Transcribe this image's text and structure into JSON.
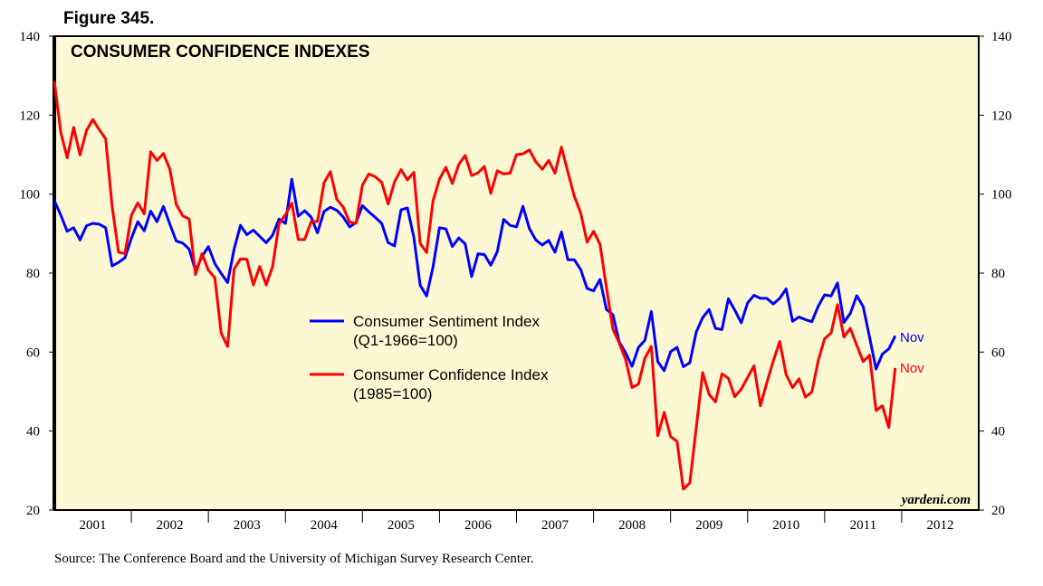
{
  "figure_label": "Figure 345.",
  "source": "Source: The Conference Board and the University of Michigan Survey Research Center.",
  "watermark": "yardeni.com",
  "chart_data": {
    "type": "line",
    "title": "CONSUMER CONFIDENCE INDEXES",
    "xlabel": "",
    "ylabel": "",
    "ylim": [
      20,
      140
    ],
    "yticks": [
      20,
      40,
      60,
      80,
      100,
      120,
      140
    ],
    "ytick_labels": [
      "20",
      "40",
      "60",
      "80",
      "100",
      "120",
      "140"
    ],
    "x_tick_labels": [
      "2001",
      "2002",
      "2003",
      "2004",
      "2005",
      "2006",
      "2007",
      "2008",
      "2009",
      "2010",
      "2011",
      "2012"
    ],
    "x_start": "2000-12",
    "x_frequency": "monthly",
    "grid": false,
    "legend_placement": "center",
    "background": "#fdf8d4",
    "series": [
      {
        "name": "Consumer Sentiment Index",
        "name_note": "(Q1-1966=100)",
        "color": "#0000ff",
        "end_label": "Nov",
        "values": [
          98.4,
          94.7,
          90.6,
          91.5,
          88.4,
          92.0,
          92.6,
          92.4,
          91.5,
          81.8,
          82.7,
          83.9,
          88.8,
          93.0,
          90.7,
          95.7,
          93.0,
          96.9,
          92.4,
          88.1,
          87.6,
          86.1,
          80.6,
          84.2,
          86.7,
          82.4,
          79.9,
          77.6,
          86.0,
          92.1,
          89.7,
          90.9,
          89.3,
          87.7,
          89.6,
          93.7,
          92.6,
          103.8,
          94.4,
          95.8,
          94.2,
          90.2,
          95.6,
          96.7,
          95.9,
          94.2,
          91.7,
          92.8,
          97.1,
          95.5,
          94.1,
          92.6,
          87.7,
          86.9,
          96.0,
          96.5,
          89.1,
          76.9,
          74.2,
          81.6,
          91.5,
          91.2,
          86.7,
          88.9,
          87.4,
          79.1,
          84.9,
          84.7,
          82.0,
          85.4,
          93.6,
          92.1,
          91.7,
          96.9,
          91.3,
          88.4,
          87.1,
          88.3,
          85.3,
          90.4,
          83.4,
          83.4,
          80.9,
          76.1,
          75.5,
          78.4,
          70.8,
          69.5,
          62.6,
          59.8,
          56.4,
          61.2,
          63.0,
          70.3,
          57.6,
          55.3,
          60.1,
          61.2,
          56.3,
          57.3,
          65.1,
          68.7,
          70.8,
          66.0,
          65.7,
          73.5,
          70.6,
          67.4,
          72.5,
          74.4,
          73.6,
          73.6,
          72.2,
          73.6,
          76.0,
          67.8,
          68.9,
          68.2,
          67.7,
          71.6,
          74.5,
          74.2,
          77.5,
          67.5,
          69.8,
          74.3,
          71.5,
          63.7,
          55.7,
          59.5,
          60.8,
          64.1
        ]
      },
      {
        "name": "Consumer Confidence Index",
        "name_note": "(1985=100)",
        "color": "#ff0000",
        "end_label": "Nov",
        "values": [
          128.6,
          115.7,
          109.2,
          116.9,
          109.9,
          116.1,
          118.9,
          116.3,
          114.0,
          97.0,
          85.3,
          84.9,
          94.6,
          97.8,
          95.0,
          110.7,
          108.5,
          110.3,
          106.3,
          97.4,
          94.5,
          93.7,
          79.6,
          84.9,
          80.7,
          78.8,
          64.8,
          61.4,
          81.0,
          83.6,
          83.5,
          77.0,
          81.7,
          77.0,
          81.7,
          92.5,
          94.8,
          97.7,
          88.5,
          88.5,
          93.0,
          93.1,
          102.8,
          105.7,
          98.7,
          96.7,
          92.9,
          92.6,
          102.3,
          105.1,
          104.4,
          103.0,
          97.5,
          103.1,
          106.2,
          103.6,
          105.5,
          87.5,
          85.2,
          98.3,
          103.8,
          106.8,
          102.7,
          107.5,
          109.8,
          104.7,
          105.4,
          107.0,
          100.2,
          105.9,
          105.1,
          105.3,
          110.0,
          110.2,
          111.2,
          108.2,
          106.3,
          108.5,
          105.3,
          111.9,
          105.6,
          99.5,
          95.2,
          87.8,
          90.6,
          87.3,
          76.4,
          65.9,
          62.3,
          58.1,
          51.0,
          51.9,
          58.5,
          61.4,
          38.8,
          44.7,
          38.6,
          37.4,
          25.3,
          26.9,
          40.8,
          54.8,
          49.3,
          47.4,
          54.5,
          53.4,
          48.7,
          50.6,
          53.6,
          56.5,
          46.4,
          52.3,
          57.7,
          62.7,
          54.3,
          51.0,
          53.2,
          48.6,
          49.9,
          57.8,
          63.4,
          64.8,
          72.0,
          63.8,
          66.0,
          61.7,
          57.6,
          59.2,
          45.2,
          46.4,
          40.9,
          56.0
        ]
      }
    ]
  }
}
